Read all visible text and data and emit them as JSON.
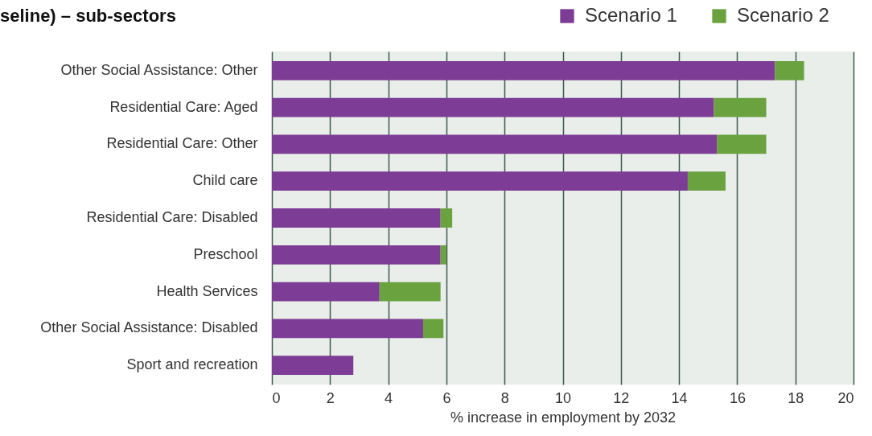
{
  "chart_data": {
    "type": "bar",
    "orientation": "horizontal",
    "stacked": true,
    "title": "seline) – sub-sectors",
    "xlabel": "% increase in employment by 2032",
    "categories": [
      "Other Social Assistance: Other",
      "Residential Care: Aged",
      "Residential Care: Other",
      "Child care",
      "Residential Care: Disabled",
      "Preschool",
      "Health Services",
      "Other Social Assistance: Disabled",
      "Sport and recreation"
    ],
    "series": [
      {
        "name": "Scenario 1",
        "color": "#7d3c96",
        "values": [
          17.3,
          15.2,
          15.3,
          14.3,
          5.8,
          5.8,
          3.7,
          5.2,
          2.8
        ]
      },
      {
        "name": "Scenario 2",
        "color": "#6aa23f",
        "values": [
          1.0,
          1.8,
          1.7,
          1.3,
          0.4,
          0.2,
          2.1,
          0.7,
          0
        ]
      }
    ],
    "xlim": [
      0,
      20
    ],
    "xticks": [
      0,
      2,
      4,
      6,
      8,
      10,
      12,
      14,
      16,
      18,
      20
    ],
    "grid": "x",
    "legend": "top right"
  }
}
